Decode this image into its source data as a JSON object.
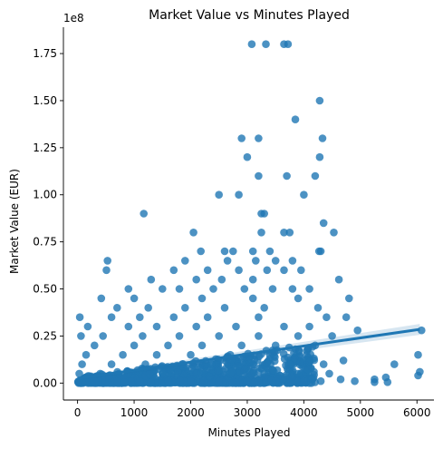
{
  "chart_data": {
    "type": "scatter",
    "title": "Market Value vs Minutes Played",
    "xlabel": "Minutes Played",
    "ylabel": "Market Value (EUR)",
    "y_offset_label": "1e8",
    "xlim": [
      -250,
      6300
    ],
    "ylim": [
      -9000000,
      189000000
    ],
    "x_ticks": [
      0,
      1000,
      2000,
      3000,
      4000,
      5000,
      6000
    ],
    "y_ticks": [
      0,
      25000000,
      50000000,
      75000000,
      100000000,
      125000000,
      150000000,
      175000000
    ],
    "y_tick_labels": [
      "0.00",
      "0.25",
      "0.50",
      "0.75",
      "1.00",
      "1.25",
      "1.50",
      "1.75"
    ],
    "grid": false,
    "point_color": "#1f77b4",
    "regression": {
      "x": [
        0,
        6050
      ],
      "y": [
        2500000,
        28500000
      ]
    },
    "points": [
      [
        3080,
        180000000
      ],
      [
        3330,
        180000000
      ],
      [
        3650,
        180000000
      ],
      [
        3720,
        180000000
      ],
      [
        4280,
        150000000
      ],
      [
        3850,
        140000000
      ],
      [
        2900,
        130000000
      ],
      [
        3200,
        130000000
      ],
      [
        4330,
        130000000
      ],
      [
        3000,
        120000000
      ],
      [
        4280,
        120000000
      ],
      [
        3200,
        110000000
      ],
      [
        3700,
        110000000
      ],
      [
        4200,
        110000000
      ],
      [
        2500,
        100000000
      ],
      [
        2850,
        100000000
      ],
      [
        4000,
        100000000
      ],
      [
        1170,
        90000000
      ],
      [
        3250,
        90000000
      ],
      [
        3300,
        90000000
      ],
      [
        4350,
        85000000
      ],
      [
        2050,
        80000000
      ],
      [
        3250,
        80000000
      ],
      [
        3650,
        80000000
      ],
      [
        3750,
        80000000
      ],
      [
        4530,
        80000000
      ],
      [
        2180,
        70000000
      ],
      [
        2600,
        70000000
      ],
      [
        2750,
        70000000
      ],
      [
        3100,
        70000000
      ],
      [
        3400,
        70000000
      ],
      [
        4270,
        70000000
      ],
      [
        4300,
        70000000
      ],
      [
        530,
        65000000
      ],
      [
        1900,
        65000000
      ],
      [
        2650,
        65000000
      ],
      [
        3150,
        65000000
      ],
      [
        3500,
        65000000
      ],
      [
        3800,
        65000000
      ],
      [
        510,
        60000000
      ],
      [
        1700,
        60000000
      ],
      [
        2300,
        60000000
      ],
      [
        2850,
        60000000
      ],
      [
        3350,
        60000000
      ],
      [
        3650,
        60000000
      ],
      [
        3950,
        60000000
      ],
      [
        1300,
        55000000
      ],
      [
        2100,
        55000000
      ],
      [
        2550,
        55000000
      ],
      [
        3100,
        55000000
      ],
      [
        4620,
        55000000
      ],
      [
        900,
        50000000
      ],
      [
        1500,
        50000000
      ],
      [
        1800,
        50000000
      ],
      [
        2400,
        50000000
      ],
      [
        2950,
        50000000
      ],
      [
        3450,
        50000000
      ],
      [
        3800,
        50000000
      ],
      [
        4100,
        50000000
      ],
      [
        420,
        45000000
      ],
      [
        1000,
        45000000
      ],
      [
        2200,
        45000000
      ],
      [
        3100,
        45000000
      ],
      [
        3900,
        45000000
      ],
      [
        4800,
        45000000
      ],
      [
        700,
        40000000
      ],
      [
        1250,
        40000000
      ],
      [
        1900,
        40000000
      ],
      [
        2600,
        40000000
      ],
      [
        3300,
        40000000
      ],
      [
        4250,
        40000000
      ],
      [
        40,
        35000000
      ],
      [
        600,
        35000000
      ],
      [
        1100,
        35000000
      ],
      [
        1700,
        35000000
      ],
      [
        2300,
        35000000
      ],
      [
        3200,
        35000000
      ],
      [
        4400,
        35000000
      ],
      [
        4750,
        35000000
      ],
      [
        180,
        30000000
      ],
      [
        900,
        30000000
      ],
      [
        1400,
        30000000
      ],
      [
        2100,
        30000000
      ],
      [
        2800,
        30000000
      ],
      [
        3650,
        30000000
      ],
      [
        4100,
        30000000
      ],
      [
        4950,
        28000000
      ],
      [
        60,
        25000000
      ],
      [
        450,
        25000000
      ],
      [
        1150,
        25000000
      ],
      [
        1800,
        25000000
      ],
      [
        2500,
        25000000
      ],
      [
        3200,
        25000000
      ],
      [
        3900,
        25000000
      ],
      [
        4500,
        25000000
      ],
      [
        300,
        20000000
      ],
      [
        1000,
        20000000
      ],
      [
        1600,
        20000000
      ],
      [
        2200,
        20000000
      ],
      [
        2900,
        20000000
      ],
      [
        3500,
        20000000
      ],
      [
        4200,
        20000000
      ],
      [
        6020,
        15000000
      ],
      [
        150,
        15000000
      ],
      [
        800,
        15000000
      ],
      [
        1400,
        15000000
      ],
      [
        2000,
        15000000
      ],
      [
        2700,
        15000000
      ],
      [
        3400,
        15000000
      ],
      [
        4050,
        15000000
      ],
      [
        4700,
        12000000
      ],
      [
        5600,
        10000000
      ],
      [
        80,
        10000000
      ],
      [
        600,
        10000000
      ],
      [
        1200,
        10000000
      ],
      [
        1850,
        10000000
      ],
      [
        2450,
        10000000
      ],
      [
        3100,
        10000000
      ],
      [
        3750,
        10000000
      ],
      [
        4350,
        10000000
      ],
      [
        6050,
        6000000
      ],
      [
        6020,
        4000000
      ],
      [
        5450,
        3000000
      ],
      [
        5250,
        2000000
      ],
      [
        4650,
        2000000
      ],
      [
        4900,
        1000000
      ],
      [
        5480,
        500000
      ],
      [
        5250,
        500000
      ],
      [
        30,
        5000000
      ],
      [
        400,
        5000000
      ],
      [
        900,
        5000000
      ],
      [
        1500,
        5000000
      ],
      [
        2100,
        5000000
      ],
      [
        2700,
        5000000
      ],
      [
        3300,
        5000000
      ],
      [
        3900,
        5000000
      ],
      [
        4450,
        5000000
      ],
      [
        20,
        1000000
      ],
      [
        300,
        1000000
      ],
      [
        700,
        1000000
      ],
      [
        1100,
        1000000
      ],
      [
        1600,
        1000000
      ],
      [
        2000,
        1000000
      ],
      [
        2500,
        1000000
      ],
      [
        3000,
        1000000
      ],
      [
        3500,
        1000000
      ],
      [
        4000,
        1000000
      ],
      [
        4300,
        1000000
      ],
      [
        6080,
        28000000
      ]
    ]
  }
}
